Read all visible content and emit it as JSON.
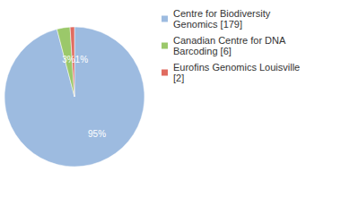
{
  "chart_data": {
    "type": "pie",
    "categories": [
      "Centre for Biodiversity Genomics [179]",
      "Canadian Centre for DNA Barcoding [6]",
      "Eurofins Genomics Louisville [2]"
    ],
    "values": [
      95,
      3,
      1
    ],
    "value_labels": [
      "95%",
      "3%",
      "1%"
    ],
    "colors": [
      "#9dbbe0",
      "#9bc86a",
      "#e06b60"
    ],
    "data_labels": true,
    "legend": "right"
  }
}
